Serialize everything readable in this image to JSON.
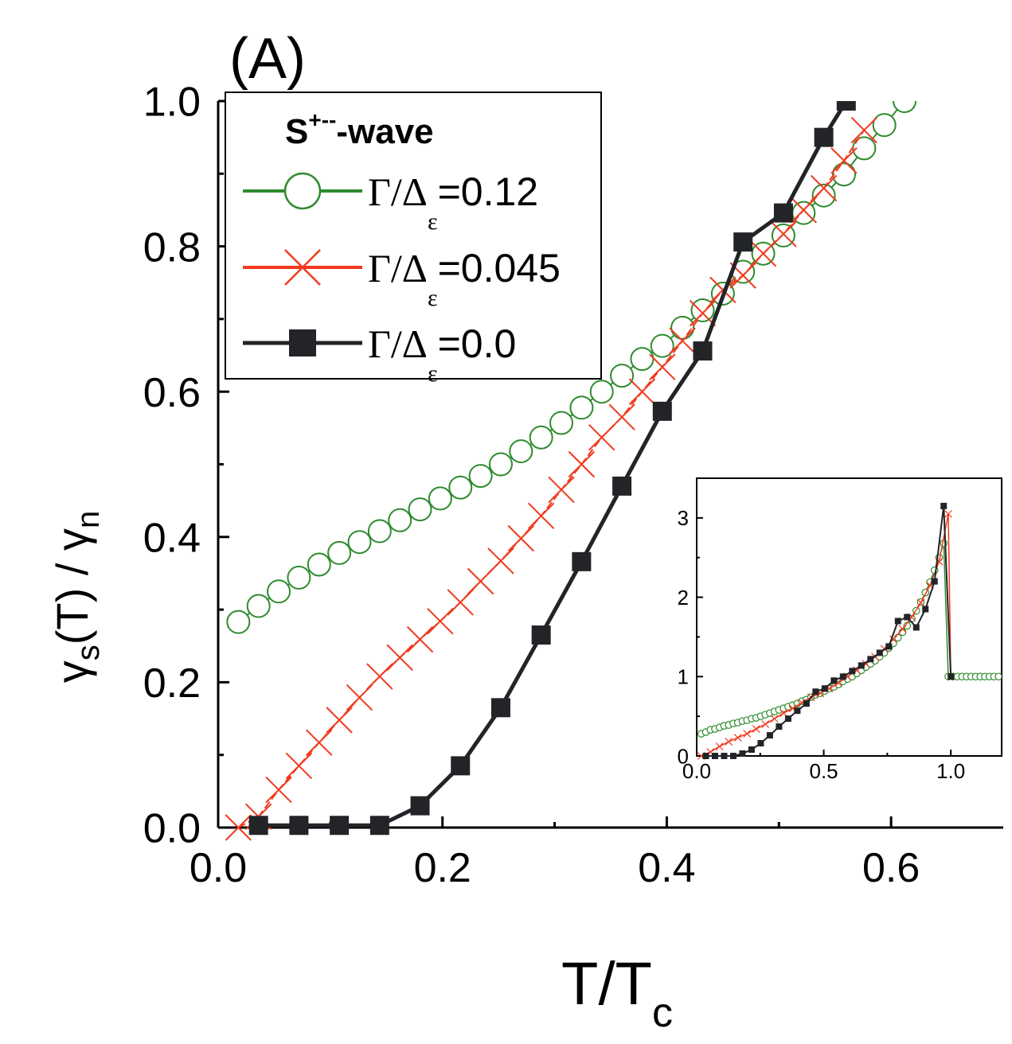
{
  "colors": {
    "green": "#2e8b2e",
    "red": "#f03a1e",
    "black": "#222428",
    "axis": "#000000"
  },
  "labels": {
    "panel": "(A)",
    "xlabel": "T/T",
    "xlabel_sub": "c",
    "ylabel_gamma": "γ",
    "ylabel_sub_s": "s",
    "ylabel_mid": "(T) / ",
    "ylabel_sub_n": "n"
  },
  "legend": {
    "title": "S",
    "title_sup": "+--",
    "title_suffix": "-wave",
    "entries": [
      {
        "prefix": "Γ/Δ",
        "sub": "ε",
        "value": "=0.12",
        "marker": "circle",
        "color": "green"
      },
      {
        "prefix": "Γ/Δ",
        "sub": "ε",
        "value": "=0.045",
        "marker": "cross",
        "color": "red"
      },
      {
        "prefix": "Γ/Δ",
        "sub": "ε",
        "value": "=0.0",
        "marker": "square",
        "color": "black"
      }
    ]
  },
  "chart_data": [
    {
      "type": "line",
      "panel": "main",
      "title": "",
      "xlabel": "T/Tc",
      "ylabel": "γs(T) / γn",
      "xlim": [
        0.0,
        0.7
      ],
      "ylim": [
        0.0,
        1.0
      ],
      "xticks": [
        "0.0",
        "0.2",
        "0.4",
        "0.6"
      ],
      "yticks": [
        "0.0",
        "0.2",
        "0.4",
        "0.6",
        "0.8",
        "1.0"
      ],
      "legend_position": "top-left",
      "series": [
        {
          "name": "Γ/Δε=0.12",
          "color": "green",
          "marker": "circle",
          "x": [
            0.018,
            0.036,
            0.054,
            0.072,
            0.09,
            0.108,
            0.126,
            0.144,
            0.162,
            0.18,
            0.198,
            0.216,
            0.234,
            0.252,
            0.27,
            0.288,
            0.306,
            0.324,
            0.342,
            0.36,
            0.378,
            0.396,
            0.414,
            0.432,
            0.45,
            0.468,
            0.486,
            0.504,
            0.522,
            0.54,
            0.558,
            0.576,
            0.594,
            0.612
          ],
          "y": [
            0.283,
            0.305,
            0.325,
            0.344,
            0.362,
            0.378,
            0.393,
            0.408,
            0.423,
            0.438,
            0.453,
            0.468,
            0.484,
            0.5,
            0.518,
            0.537,
            0.557,
            0.578,
            0.6,
            0.622,
            0.645,
            0.663,
            0.688,
            0.712,
            0.735,
            0.765,
            0.79,
            0.815,
            0.846,
            0.87,
            0.899,
            0.935,
            0.967,
            1.0
          ]
        },
        {
          "name": "Γ/Δε=0.045",
          "color": "red",
          "marker": "cross",
          "x": [
            0.018,
            0.036,
            0.054,
            0.072,
            0.09,
            0.108,
            0.126,
            0.144,
            0.162,
            0.18,
            0.198,
            0.216,
            0.234,
            0.252,
            0.27,
            0.288,
            0.306,
            0.324,
            0.342,
            0.36,
            0.378,
            0.396,
            0.414,
            0.432,
            0.45,
            0.468,
            0.486,
            0.504,
            0.522,
            0.54,
            0.558,
            0.576
          ],
          "y": [
            0.0,
            0.015,
            0.052,
            0.085,
            0.117,
            0.148,
            0.179,
            0.208,
            0.234,
            0.259,
            0.284,
            0.31,
            0.339,
            0.367,
            0.398,
            0.429,
            0.465,
            0.5,
            0.537,
            0.565,
            0.6,
            0.634,
            0.67,
            0.708,
            0.74,
            0.76,
            0.79,
            0.817,
            0.85,
            0.88,
            0.918,
            0.96
          ]
        },
        {
          "name": "Γ/Δε=0.0",
          "color": "black",
          "marker": "square",
          "x": [
            0.036,
            0.072,
            0.108,
            0.144,
            0.18,
            0.216,
            0.252,
            0.288,
            0.324,
            0.36,
            0.396,
            0.432,
            0.468,
            0.504,
            0.54,
            0.56
          ],
          "y": [
            0.003,
            0.003,
            0.003,
            0.003,
            0.03,
            0.085,
            0.165,
            0.265,
            0.366,
            0.47,
            0.573,
            0.656,
            0.806,
            0.846,
            0.95,
            1.0
          ]
        }
      ]
    },
    {
      "type": "line",
      "panel": "inset",
      "title": "",
      "xlabel": "",
      "ylabel": "",
      "xlim": [
        0.0,
        1.2
      ],
      "ylim": [
        0.0,
        3.5
      ],
      "xticks": [
        "0.0",
        "0.5",
        "1.0"
      ],
      "yticks": [
        "0",
        "1",
        "2",
        "3"
      ],
      "series": [
        {
          "name": "Γ/Δε=0.12",
          "color": "green",
          "marker": "circle",
          "x": [
            0.018,
            0.036,
            0.054,
            0.072,
            0.09,
            0.108,
            0.126,
            0.144,
            0.162,
            0.18,
            0.198,
            0.216,
            0.234,
            0.252,
            0.27,
            0.288,
            0.306,
            0.324,
            0.342,
            0.36,
            0.378,
            0.396,
            0.414,
            0.432,
            0.45,
            0.468,
            0.486,
            0.504,
            0.522,
            0.54,
            0.558,
            0.576,
            0.594,
            0.612,
            0.63,
            0.648,
            0.666,
            0.684,
            0.702,
            0.72,
            0.738,
            0.756,
            0.774,
            0.792,
            0.81,
            0.828,
            0.846,
            0.864,
            0.882,
            0.9,
            0.918,
            0.936,
            0.954,
            0.972,
            0.99,
            1.008,
            1.026,
            1.044,
            1.062,
            1.08,
            1.098,
            1.116,
            1.134,
            1.152,
            1.17,
            1.188
          ],
          "y": [
            0.28,
            0.3,
            0.33,
            0.34,
            0.36,
            0.38,
            0.39,
            0.41,
            0.42,
            0.44,
            0.45,
            0.47,
            0.48,
            0.5,
            0.52,
            0.54,
            0.56,
            0.58,
            0.6,
            0.62,
            0.64,
            0.66,
            0.69,
            0.71,
            0.74,
            0.77,
            0.79,
            0.82,
            0.85,
            0.87,
            0.9,
            0.94,
            0.97,
            1.0,
            1.04,
            1.08,
            1.12,
            1.16,
            1.2,
            1.25,
            1.3,
            1.36,
            1.42,
            1.49,
            1.56,
            1.64,
            1.73,
            1.83,
            1.94,
            2.06,
            2.19,
            2.34,
            2.5,
            2.68,
            1.0,
            1.0,
            1.0,
            1.0,
            1.0,
            1.0,
            1.0,
            1.0,
            1.0,
            1.0,
            1.0,
            1.0
          ]
        },
        {
          "name": "Γ/Δε=0.045",
          "color": "red",
          "marker": "cross",
          "x": [
            0.018,
            0.054,
            0.09,
            0.126,
            0.162,
            0.198,
            0.234,
            0.27,
            0.306,
            0.342,
            0.378,
            0.414,
            0.45,
            0.486,
            0.522,
            0.558,
            0.594,
            0.63,
            0.666,
            0.702,
            0.738,
            0.774,
            0.81,
            0.846,
            0.882,
            0.918,
            0.954,
            0.99,
            1.0
          ],
          "y": [
            0.0,
            0.05,
            0.12,
            0.18,
            0.23,
            0.28,
            0.34,
            0.4,
            0.47,
            0.54,
            0.6,
            0.67,
            0.74,
            0.79,
            0.85,
            0.92,
            1.0,
            1.08,
            1.16,
            1.25,
            1.35,
            1.47,
            1.6,
            1.75,
            1.93,
            2.15,
            2.45,
            3.05,
            1.0
          ]
        },
        {
          "name": "Γ/Δε=0.0",
          "color": "black",
          "marker": "square",
          "x": [
            0.036,
            0.072,
            0.108,
            0.144,
            0.18,
            0.216,
            0.252,
            0.288,
            0.324,
            0.36,
            0.396,
            0.432,
            0.468,
            0.504,
            0.54,
            0.576,
            0.612,
            0.648,
            0.684,
            0.72,
            0.756,
            0.792,
            0.828,
            0.864,
            0.9,
            0.936,
            0.972,
            1.0
          ],
          "y": [
            0.0,
            0.0,
            0.0,
            0.0,
            0.03,
            0.08,
            0.16,
            0.26,
            0.37,
            0.47,
            0.57,
            0.66,
            0.81,
            0.85,
            0.95,
            1.0,
            1.07,
            1.14,
            1.22,
            1.3,
            1.38,
            1.7,
            1.75,
            1.62,
            1.85,
            2.2,
            3.15,
            1.0
          ]
        }
      ]
    }
  ]
}
